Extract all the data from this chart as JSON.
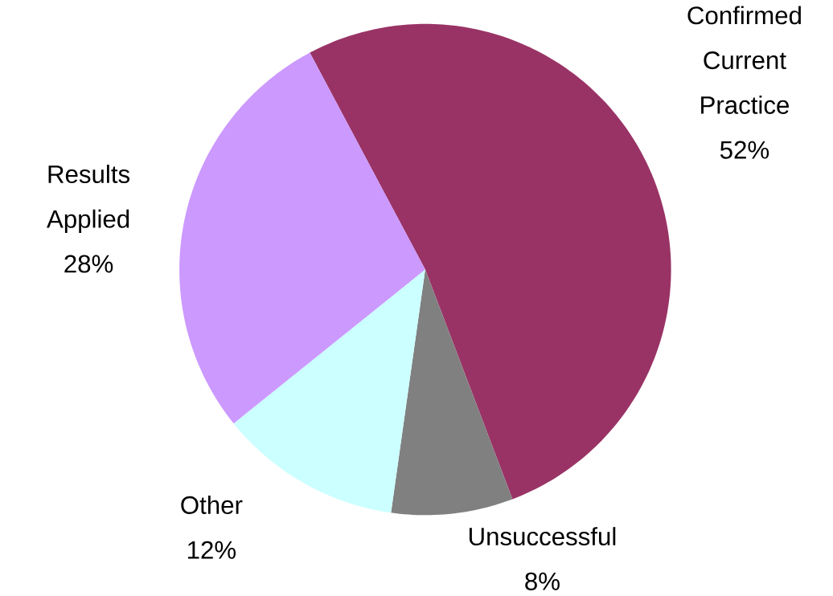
{
  "chart_data": {
    "type": "pie",
    "categories": [
      "Confirmed Current Practice",
      "Unsuccessful",
      "Other",
      "Results Applied"
    ],
    "values": [
      52,
      8,
      12,
      28
    ],
    "value_labels": [
      "52%",
      "8%",
      "12%",
      "28%"
    ],
    "colors": [
      "#993366",
      "#808080",
      "#ccffff",
      "#cc99ff"
    ]
  }
}
